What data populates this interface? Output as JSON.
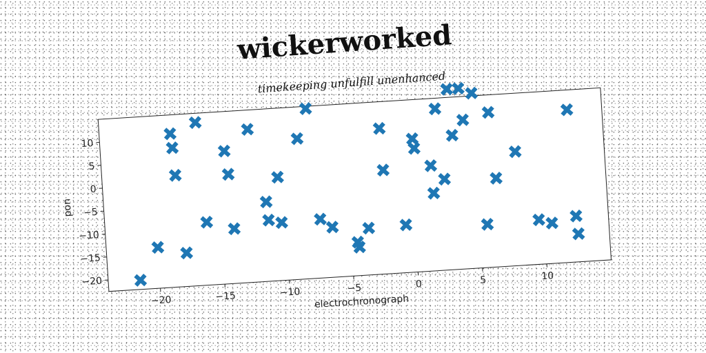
{
  "chart_data": {
    "type": "scatter",
    "title": "wickerworked",
    "subtitle": "timekeeping unfulfill unenhanced",
    "xlabel": "electrochronograph",
    "ylabel": "pon",
    "xlim": [
      -24,
      15
    ],
    "ylim": [
      -22.5,
      15
    ],
    "xticks": [
      -20,
      -15,
      -10,
      -5,
      0,
      5,
      10
    ],
    "yticks": [
      -20,
      -15,
      -10,
      -5,
      0,
      5,
      10
    ],
    "xtick_labels": [
      "−20",
      "−15",
      "−10",
      "−5",
      "0",
      "5",
      "10"
    ],
    "ytick_labels": [
      "−20",
      "−15",
      "−10",
      "−5",
      "0",
      "5",
      "10"
    ],
    "marker": "X",
    "color": "#1f77b4",
    "grid": false,
    "points": [
      {
        "x": -21.5,
        "y": -20.5
      },
      {
        "x": -20.0,
        "y": -13.6
      },
      {
        "x": -18.5,
        "y": 10.9
      },
      {
        "x": -18.4,
        "y": 7.8
      },
      {
        "x": -18.3,
        "y": 1.8
      },
      {
        "x": -17.8,
        "y": -15.2
      },
      {
        "x": -16.5,
        "y": 13.0
      },
      {
        "x": -16.1,
        "y": -8.8
      },
      {
        "x": -14.4,
        "y": 6.4
      },
      {
        "x": -14.2,
        "y": 1.3
      },
      {
        "x": -14.0,
        "y": -10.6
      },
      {
        "x": -12.5,
        "y": 10.8
      },
      {
        "x": -11.4,
        "y": -5.2
      },
      {
        "x": -11.3,
        "y": -9.2
      },
      {
        "x": -10.4,
        "y": 0.0
      },
      {
        "x": -10.3,
        "y": -9.9
      },
      {
        "x": -8.7,
        "y": 8.1
      },
      {
        "x": -7.9,
        "y": 14.5
      },
      {
        "x": -7.3,
        "y": -9.7
      },
      {
        "x": -6.4,
        "y": -11.6
      },
      {
        "x": -4.5,
        "y": -15.2
      },
      {
        "x": -4.4,
        "y": -16.3
      },
      {
        "x": -3.6,
        "y": -12.3
      },
      {
        "x": -2.3,
        "y": 9.2
      },
      {
        "x": -2.2,
        "y": 0.1
      },
      {
        "x": -0.7,
        "y": -12.1
      },
      {
        "x": 0.2,
        "y": 6.5
      },
      {
        "x": 0.3,
        "y": 4.4
      },
      {
        "x": 1.5,
        "y": 0.4
      },
      {
        "x": 1.6,
        "y": -5.6
      },
      {
        "x": 2.1,
        "y": 12.7
      },
      {
        "x": 2.5,
        "y": -2.7
      },
      {
        "x": 3.1,
        "y": 16.8
      },
      {
        "x": 3.3,
        "y": 6.7
      },
      {
        "x": 4.0,
        "y": 16.8
      },
      {
        "x": 4.2,
        "y": 9.9
      },
      {
        "x": 5.0,
        "y": 15.6
      },
      {
        "x": 5.6,
        "y": -13.1
      },
      {
        "x": 6.2,
        "y": 11.2
      },
      {
        "x": 6.5,
        "y": -3.2
      },
      {
        "x": 8.1,
        "y": 2.3
      },
      {
        "x": 9.6,
        "y": -12.8
      },
      {
        "x": 10.6,
        "y": -13.7
      },
      {
        "x": 12.3,
        "y": 10.7
      },
      {
        "x": 12.5,
        "y": -12.5
      },
      {
        "x": 12.6,
        "y": -16.4
      }
    ]
  }
}
